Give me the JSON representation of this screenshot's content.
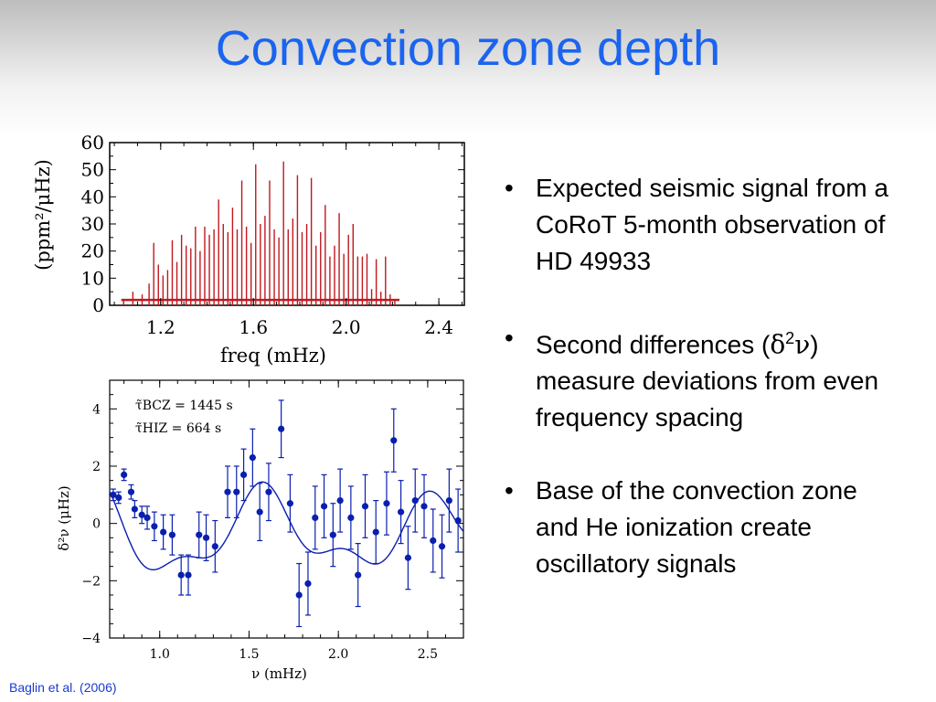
{
  "slide": {
    "title": "Convection zone depth",
    "citation": "Baglin et al. (2006)"
  },
  "bullets": [
    {
      "text": "Expected seismic signal from a CoRoT 5-month observation of HD 49933"
    },
    {
      "prefix": "Second differences (",
      "delta": "δ",
      "sup": "2",
      "nu": "ν",
      "suffix": ") measure deviations from even frequency spacing"
    },
    {
      "text": "Base of the convection zone and He ionization create oscillatory signals"
    }
  ],
  "chart_data": [
    {
      "type": "line",
      "series_color": "#c0181e",
      "xlabel": "freq (mHz)",
      "ylabel": "(ppm²/μHz)",
      "xlim": [
        0.98,
        2.51
      ],
      "ylim": [
        0,
        60
      ],
      "xticks": [
        "1.2",
        "1.6",
        "2.0",
        "2.4"
      ],
      "yticks": [
        "0",
        "10",
        "20",
        "30",
        "40",
        "50",
        "60"
      ],
      "x": [
        1.04,
        1.08,
        1.12,
        1.15,
        1.17,
        1.19,
        1.21,
        1.23,
        1.25,
        1.27,
        1.29,
        1.31,
        1.33,
        1.35,
        1.37,
        1.39,
        1.41,
        1.43,
        1.45,
        1.47,
        1.49,
        1.51,
        1.53,
        1.55,
        1.57,
        1.59,
        1.61,
        1.63,
        1.65,
        1.67,
        1.69,
        1.71,
        1.73,
        1.75,
        1.77,
        1.79,
        1.81,
        1.83,
        1.85,
        1.87,
        1.89,
        1.91,
        1.93,
        1.95,
        1.97,
        1.99,
        2.01,
        2.03,
        2.05,
        2.07,
        2.09,
        2.11,
        2.13,
        2.15,
        2.17,
        2.19,
        2.21
      ],
      "y": [
        2,
        5,
        4,
        8,
        23,
        15,
        11,
        13,
        24,
        16,
        26,
        22,
        21,
        29,
        20,
        29,
        26,
        28,
        39,
        30,
        27,
        36,
        28,
        46,
        29,
        23,
        52,
        30,
        33,
        46,
        28,
        25,
        53,
        28,
        32,
        48,
        27,
        30,
        47,
        22,
        27,
        37,
        18,
        22,
        34,
        19,
        26,
        30,
        18,
        18,
        19,
        6,
        17,
        5,
        18,
        4,
        2
      ],
      "baseline": 2
    },
    {
      "type": "scatter",
      "series_color": "#0a1fb0",
      "xlabel": "ν (mHz)",
      "ylabel": "δ²ν (μHz)",
      "xlim": [
        0.72,
        2.7
      ],
      "ylim": [
        -4,
        5
      ],
      "xticks": [
        "1.0",
        "1.5",
        "2.0",
        "2.5"
      ],
      "yticks": [
        "−4",
        "−2",
        "0",
        "2",
        "4"
      ],
      "annotations": [
        "τ̃BCZ = 1445 s",
        "τ̃HIZ = 664 s"
      ],
      "points": [
        [
          0.74,
          1.0,
          0.2
        ],
        [
          0.77,
          0.9,
          0.2
        ],
        [
          0.8,
          1.7,
          0.2
        ],
        [
          0.84,
          1.1,
          0.25
        ],
        [
          0.86,
          0.5,
          0.3
        ],
        [
          0.9,
          0.3,
          0.3
        ],
        [
          0.93,
          0.2,
          0.4
        ],
        [
          0.97,
          -0.1,
          0.5
        ],
        [
          1.02,
          -0.3,
          0.6
        ],
        [
          1.07,
          -0.4,
          0.7
        ],
        [
          1.12,
          -1.8,
          0.7
        ],
        [
          1.16,
          -1.8,
          0.7
        ],
        [
          1.22,
          -0.4,
          0.8
        ],
        [
          1.26,
          -0.5,
          0.8
        ],
        [
          1.31,
          -0.8,
          0.9
        ],
        [
          1.38,
          1.1,
          0.9
        ],
        [
          1.43,
          1.1,
          0.9
        ],
        [
          1.47,
          1.7,
          0.9
        ],
        [
          1.52,
          2.3,
          1.0
        ],
        [
          1.56,
          0.4,
          1.0
        ],
        [
          1.61,
          1.1,
          1.0
        ],
        [
          1.68,
          3.3,
          1.0
        ],
        [
          1.73,
          0.7,
          1.0
        ],
        [
          1.78,
          -2.5,
          1.1
        ],
        [
          1.83,
          -2.1,
          1.1
        ],
        [
          1.87,
          0.2,
          1.1
        ],
        [
          1.92,
          0.6,
          1.1
        ],
        [
          1.97,
          -0.4,
          1.1
        ],
        [
          2.01,
          0.8,
          1.1
        ],
        [
          2.07,
          0.2,
          1.1
        ],
        [
          2.11,
          -1.8,
          1.1
        ],
        [
          2.15,
          0.6,
          1.1
        ],
        [
          2.21,
          -0.3,
          1.1
        ],
        [
          2.27,
          0.7,
          1.1
        ],
        [
          2.31,
          2.9,
          1.1
        ],
        [
          2.35,
          0.4,
          1.1
        ],
        [
          2.39,
          -1.2,
          1.1
        ],
        [
          2.43,
          0.8,
          1.1
        ],
        [
          2.48,
          0.6,
          1.1
        ],
        [
          2.53,
          -0.6,
          1.1
        ],
        [
          2.58,
          -0.8,
          1.1
        ],
        [
          2.62,
          0.8,
          1.1
        ],
        [
          2.67,
          0.1,
          1.1
        ]
      ]
    }
  ]
}
